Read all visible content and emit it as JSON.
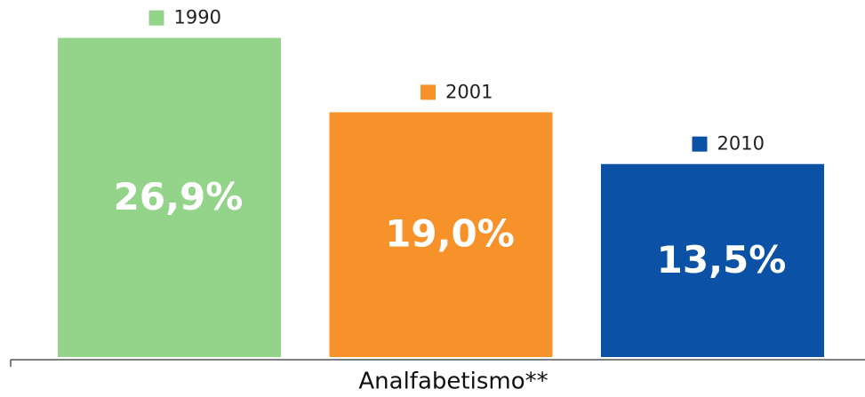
{
  "chart_data": {
    "type": "bar",
    "categories": [
      "Analfabetismo**"
    ],
    "series": [
      {
        "name": "1990",
        "color": "#93d48a",
        "values": [
          26.9
        ],
        "value_labels": [
          "26,9%"
        ]
      },
      {
        "name": "2001",
        "color": "#f7922a",
        "values": [
          19.0
        ],
        "value_labels": [
          "19,0%"
        ]
      },
      {
        "name": "2010",
        "color": "#0b51a6",
        "values": [
          13.5
        ],
        "value_labels": [
          "13,5%"
        ]
      }
    ],
    "ylim": [
      -7,
      28
    ]
  }
}
